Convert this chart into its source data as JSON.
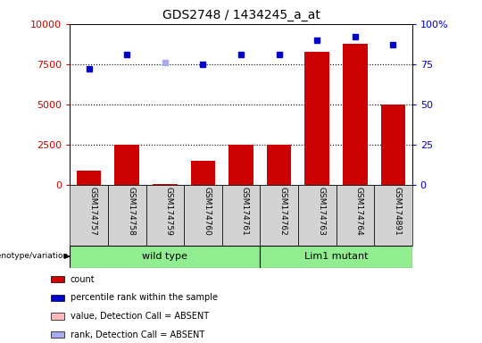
{
  "title": "GDS2748 / 1434245_a_at",
  "samples": [
    "GSM174757",
    "GSM174758",
    "GSM174759",
    "GSM174760",
    "GSM174761",
    "GSM174762",
    "GSM174763",
    "GSM174764",
    "GSM174891"
  ],
  "count_values": [
    900,
    2500,
    100,
    1500,
    2500,
    2500,
    8300,
    8800,
    5000
  ],
  "percentile_values": [
    72,
    81,
    76,
    75,
    81,
    81,
    90,
    92,
    87
  ],
  "count_absent": [
    false,
    false,
    false,
    false,
    false,
    false,
    false,
    false,
    false
  ],
  "rank_absent": [
    false,
    false,
    true,
    false,
    false,
    false,
    false,
    false,
    false
  ],
  "groups": [
    {
      "label": "wild type",
      "start": 0,
      "end": 5,
      "color": "#90EE90"
    },
    {
      "label": "Lim1 mutant",
      "start": 5,
      "end": 9,
      "color": "#90EE90"
    }
  ],
  "left_yaxis_color": "#cc0000",
  "right_yaxis_color": "#0000cc",
  "left_ylim": [
    0,
    10000
  ],
  "right_ylim": [
    0,
    100
  ],
  "left_yticks": [
    0,
    2500,
    5000,
    7500,
    10000
  ],
  "right_yticks": [
    0,
    25,
    50,
    75,
    100
  ],
  "bar_color": "#cc0000",
  "bar_absent_color": "#ffbbbb",
  "dot_color": "#0000cc",
  "dot_absent_color": "#aaaaee",
  "bg_color": "#d3d3d3",
  "plot_bg": "#ffffff",
  "legend_items": [
    {
      "label": "count",
      "color": "#cc0000"
    },
    {
      "label": "percentile rank within the sample",
      "color": "#0000cc"
    },
    {
      "label": "value, Detection Call = ABSENT",
      "color": "#ffbbbb"
    },
    {
      "label": "rank, Detection Call = ABSENT",
      "color": "#aaaaee"
    }
  ],
  "genotype_label": "genotype/variation"
}
